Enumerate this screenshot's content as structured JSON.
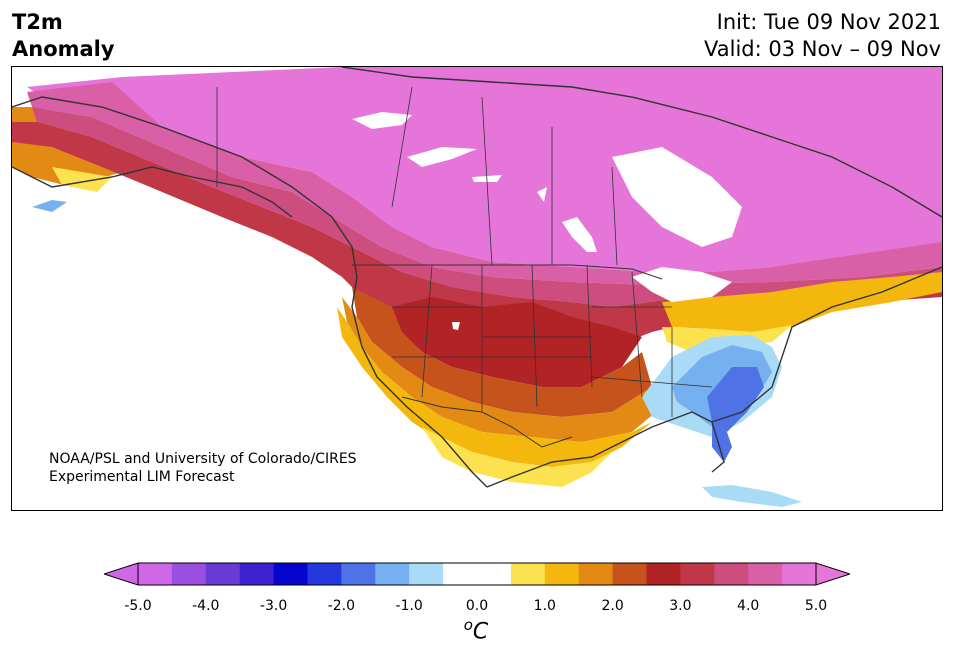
{
  "header": {
    "variable_line1": "T2m",
    "variable_line2": "Anomaly",
    "init": "Init: Tue 09 Nov 2021",
    "valid": "Valid: 03 Nov – 09 Nov"
  },
  "credit": {
    "line1": "NOAA/PSL and University of Colorado/CIRES",
    "line2": "Experimental LIM Forecast"
  },
  "colorbar": {
    "tick_labels": [
      "-5.0",
      "-4.0",
      "-3.0",
      "-2.0",
      "-1.0",
      "0.0",
      "1.0",
      "2.0",
      "3.0",
      "4.0",
      "5.0"
    ],
    "unit_base": "C",
    "unit_sup": "o",
    "bins": [
      {
        "lo": -5.0,
        "hi": -4.5,
        "color": "#d067e6"
      },
      {
        "lo": -4.5,
        "hi": -4.0,
        "color": "#9a4fe0"
      },
      {
        "lo": -4.0,
        "hi": -3.5,
        "color": "#6a3ad9"
      },
      {
        "lo": -3.5,
        "hi": -3.0,
        "color": "#3c22cf"
      },
      {
        "lo": -3.0,
        "hi": -2.5,
        "color": "#0505cf"
      },
      {
        "lo": -2.5,
        "hi": -2.0,
        "color": "#2438de"
      },
      {
        "lo": -2.0,
        "hi": -1.5,
        "color": "#4f73e6"
      },
      {
        "lo": -1.5,
        "hi": -1.0,
        "color": "#76b0f0"
      },
      {
        "lo": -1.0,
        "hi": -0.5,
        "color": "#a9dbf7"
      },
      {
        "lo": -0.5,
        "hi": 0.5,
        "color": "#ffffff"
      },
      {
        "lo": 0.5,
        "hi": 1.0,
        "color": "#fde24f"
      },
      {
        "lo": 1.0,
        "hi": 1.5,
        "color": "#f3b70d"
      },
      {
        "lo": 1.5,
        "hi": 2.0,
        "color": "#e28a14"
      },
      {
        "lo": 2.0,
        "hi": 2.5,
        "color": "#c6531b"
      },
      {
        "lo": 2.5,
        "hi": 3.0,
        "color": "#b12324"
      },
      {
        "lo": 3.0,
        "hi": 3.5,
        "color": "#c03748"
      },
      {
        "lo": 3.5,
        "hi": 4.0,
        "color": "#cc4d7e"
      },
      {
        "lo": 4.0,
        "hi": 4.5,
        "color": "#d95fa6"
      },
      {
        "lo": 4.5,
        "hi": 5.0,
        "color": "#e575d9"
      }
    ],
    "under_color": "#d067e6",
    "over_color": "#e575d9"
  },
  "map": {
    "land_outline_color": "#333333",
    "region": "North America"
  }
}
